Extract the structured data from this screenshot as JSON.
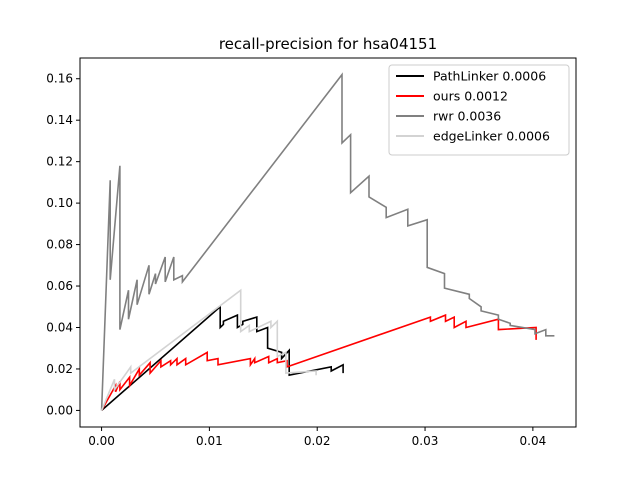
{
  "chart_data": {
    "type": "line",
    "title": "recall-precision for hsa04151",
    "xlabel": "",
    "ylabel": "",
    "xlim": [
      -0.002,
      0.044
    ],
    "ylim": [
      -0.008,
      0.17
    ],
    "xticks": [
      0.0,
      0.01,
      0.02,
      0.03,
      0.04
    ],
    "xtick_labels": [
      "0.00",
      "0.01",
      "0.02",
      "0.03",
      "0.04"
    ],
    "yticks": [
      0.0,
      0.02,
      0.04,
      0.06,
      0.08,
      0.1,
      0.12,
      0.14,
      0.16
    ],
    "ytick_labels": [
      "0.00",
      "0.02",
      "0.04",
      "0.06",
      "0.08",
      "0.10",
      "0.12",
      "0.14",
      "0.16"
    ],
    "grid": false,
    "legend_position": "top-right",
    "series": [
      {
        "name": "PathLinker 0.0006",
        "color": "#000000",
        "x": [
          0.0,
          0.011,
          0.011,
          0.0113,
          0.0113,
          0.0126,
          0.0126,
          0.0131,
          0.0131,
          0.0144,
          0.0144,
          0.0154,
          0.0154,
          0.0167,
          0.0167,
          0.0174,
          0.0174,
          0.0213,
          0.0213,
          0.0224,
          0.0224
        ],
        "y": [
          0.0,
          0.05,
          0.04,
          0.0415,
          0.043,
          0.046,
          0.04,
          0.0415,
          0.043,
          0.045,
          0.038,
          0.04,
          0.03,
          0.028,
          0.025,
          0.029,
          0.017,
          0.021,
          0.019,
          0.022,
          0.018
        ]
      },
      {
        "name": "ours 0.0012",
        "color": "#ff0000",
        "x": [
          0.0,
          0.0013,
          0.0013,
          0.0017,
          0.0017,
          0.0026,
          0.0026,
          0.0035,
          0.0035,
          0.0045,
          0.0045,
          0.0055,
          0.0055,
          0.0064,
          0.0064,
          0.007,
          0.007,
          0.0078,
          0.0078,
          0.0098,
          0.0098,
          0.0108,
          0.0108,
          0.0138,
          0.0138,
          0.0142,
          0.0142,
          0.0155,
          0.0155,
          0.0163,
          0.0163,
          0.0172,
          0.0172,
          0.0305,
          0.0305,
          0.0319,
          0.0319,
          0.0327,
          0.0327,
          0.0338,
          0.0338,
          0.0368,
          0.0368,
          0.0403,
          0.0403
        ],
        "y": [
          0.0,
          0.012,
          0.009,
          0.014,
          0.01,
          0.016,
          0.012,
          0.02,
          0.017,
          0.023,
          0.018,
          0.024,
          0.021,
          0.024,
          0.022,
          0.025,
          0.022,
          0.025,
          0.022,
          0.028,
          0.024,
          0.025,
          0.022,
          0.025,
          0.022,
          0.025,
          0.023,
          0.026,
          0.023,
          0.025,
          0.023,
          0.024,
          0.021,
          0.045,
          0.043,
          0.046,
          0.043,
          0.045,
          0.04,
          0.043,
          0.04,
          0.044,
          0.039,
          0.04,
          0.034
        ]
      },
      {
        "name": "rwr 0.0036",
        "color": "#808080",
        "x": [
          0.0,
          0.0008,
          0.0008,
          0.0017,
          0.0017,
          0.0025,
          0.0025,
          0.0033,
          0.0033,
          0.0044,
          0.0044,
          0.005,
          0.005,
          0.0059,
          0.0059,
          0.0067,
          0.0067,
          0.0075,
          0.0075,
          0.0223,
          0.0223,
          0.0231,
          0.0231,
          0.0248,
          0.0248,
          0.0264,
          0.0264,
          0.0284,
          0.0284,
          0.0302,
          0.0302,
          0.0318,
          0.0318,
          0.0341,
          0.0341,
          0.0352,
          0.0352,
          0.0368,
          0.0368,
          0.0379,
          0.0379,
          0.0402,
          0.0402,
          0.0412,
          0.0412,
          0.042
        ],
        "y": [
          0.0,
          0.111,
          0.063,
          0.118,
          0.039,
          0.058,
          0.044,
          0.063,
          0.051,
          0.07,
          0.056,
          0.066,
          0.061,
          0.074,
          0.062,
          0.074,
          0.063,
          0.065,
          0.062,
          0.162,
          0.129,
          0.133,
          0.105,
          0.113,
          0.103,
          0.098,
          0.093,
          0.097,
          0.089,
          0.092,
          0.069,
          0.066,
          0.059,
          0.056,
          0.054,
          0.05,
          0.048,
          0.046,
          0.044,
          0.042,
          0.041,
          0.039,
          0.037,
          0.039,
          0.036,
          0.036
        ]
      },
      {
        "name": "edgeLinker 0.0006",
        "color": "#d3d3d3",
        "x": [
          0.0,
          0.0012,
          0.0012,
          0.0027,
          0.0027,
          0.0129,
          0.0129,
          0.0137,
          0.0137,
          0.0157,
          0.0157,
          0.0163,
          0.0163,
          0.0171,
          0.0171,
          0.0199,
          0.0199
        ],
        "y": [
          0.0,
          0.015,
          0.01,
          0.021,
          0.018,
          0.058,
          0.038,
          0.041,
          0.038,
          0.043,
          0.04,
          0.043,
          0.026,
          0.028,
          0.018,
          0.019,
          0.017
        ]
      }
    ]
  }
}
